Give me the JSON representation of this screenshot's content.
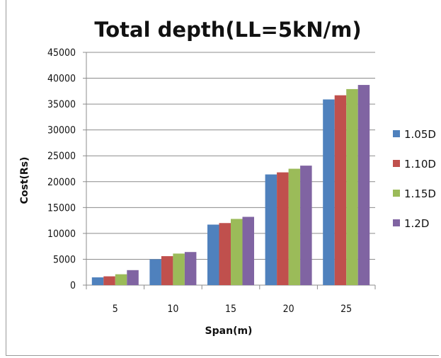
{
  "chart_data": {
    "type": "bar",
    "title": "Total depth(LL=5kN/m)",
    "xlabel": "Span(m)",
    "ylabel": "Cost(Rs)",
    "categories": [
      "5",
      "10",
      "15",
      "20",
      "25"
    ],
    "series": [
      {
        "name": "1.05D",
        "color": "#4f81bd",
        "values": [
          1500,
          5000,
          11700,
          21400,
          35900
        ]
      },
      {
        "name": "1.10D",
        "color": "#c0504d",
        "values": [
          1700,
          5600,
          12000,
          21800,
          36700
        ]
      },
      {
        "name": "1.15D",
        "color": "#9bbb59",
        "values": [
          2100,
          6100,
          12800,
          22500,
          37900
        ]
      },
      {
        "name": "1.2D",
        "color": "#8064a2",
        "values": [
          2900,
          6400,
          13200,
          23100,
          38700
        ]
      }
    ],
    "ylim": [
      0,
      45000
    ],
    "yticks": [
      0,
      5000,
      10000,
      15000,
      20000,
      25000,
      30000,
      35000,
      40000,
      45000
    ],
    "grid": true,
    "legend_position": "right"
  }
}
